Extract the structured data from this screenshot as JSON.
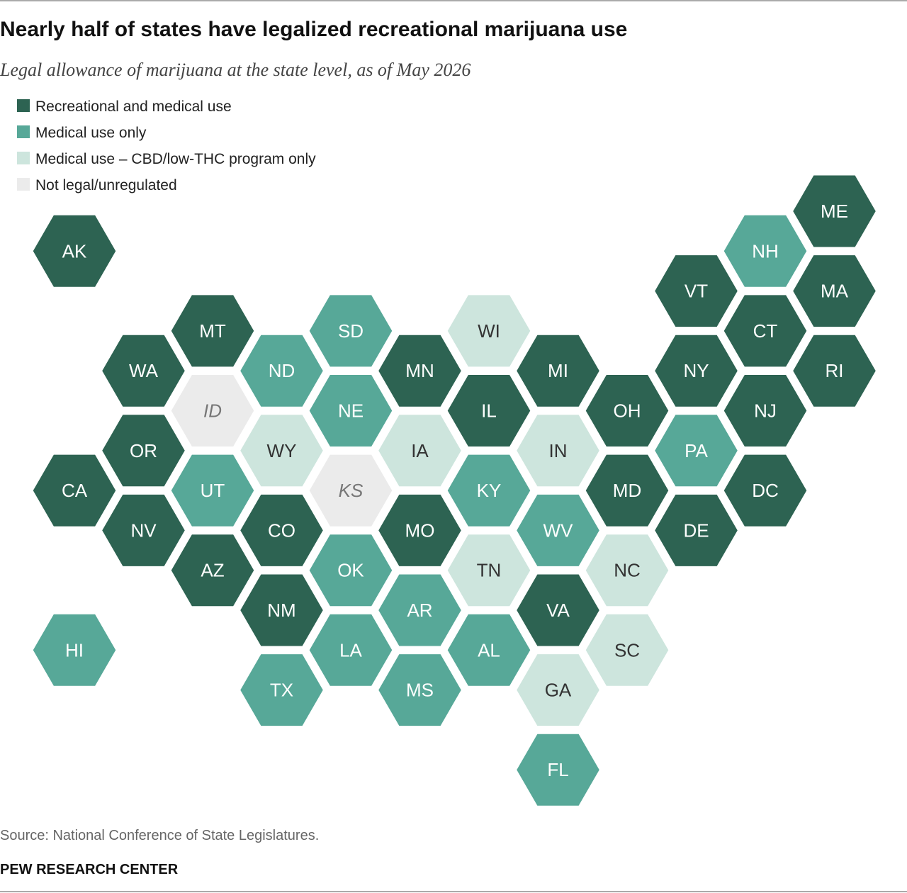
{
  "header": {
    "title": "Nearly half of states have legalized recreational marijuana use",
    "subtitle": "Legal allowance of marijuana at the state level, as of May 2026"
  },
  "legend": [
    {
      "label": "Recreational and medical use",
      "color": "#2d6352",
      "text_color": "#ffffff"
    },
    {
      "label": "Medical use only",
      "color": "#57a898",
      "text_color": "#ffffff"
    },
    {
      "label": "Medical use – CBD/low-THC program only",
      "color": "#cde5dd",
      "text_color": "#333333"
    },
    {
      "label": "Not legal/unregulated",
      "color": "#ebebeb",
      "text_color": "#777777"
    }
  ],
  "states": [
    {
      "label": "ME",
      "category": 0
    },
    {
      "label": "AK",
      "category": 0
    },
    {
      "label": "NH",
      "category": 1
    },
    {
      "label": "VT",
      "category": 0
    },
    {
      "label": "MA",
      "category": 0
    },
    {
      "label": "MT",
      "category": 0
    },
    {
      "label": "SD",
      "category": 1
    },
    {
      "label": "WI",
      "category": 2
    },
    {
      "label": "CT",
      "category": 0
    },
    {
      "label": "WA",
      "category": 0
    },
    {
      "label": "ND",
      "category": 1
    },
    {
      "label": "MN",
      "category": 0
    },
    {
      "label": "MI",
      "category": 0
    },
    {
      "label": "NY",
      "category": 0
    },
    {
      "label": "RI",
      "category": 0
    },
    {
      "label": "ID",
      "category": 3
    },
    {
      "label": "NE",
      "category": 1
    },
    {
      "label": "IL",
      "category": 0
    },
    {
      "label": "OH",
      "category": 0
    },
    {
      "label": "NJ",
      "category": 0
    },
    {
      "label": "OR",
      "category": 0
    },
    {
      "label": "WY",
      "category": 2
    },
    {
      "label": "IA",
      "category": 2
    },
    {
      "label": "IN",
      "category": 2
    },
    {
      "label": "PA",
      "category": 1
    },
    {
      "label": "CA",
      "category": 0
    },
    {
      "label": "UT",
      "category": 1
    },
    {
      "label": "KS",
      "category": 3
    },
    {
      "label": "KY",
      "category": 1
    },
    {
      "label": "MD",
      "category": 0
    },
    {
      "label": "DC",
      "category": 0
    },
    {
      "label": "NV",
      "category": 0
    },
    {
      "label": "CO",
      "category": 0
    },
    {
      "label": "MO",
      "category": 0
    },
    {
      "label": "WV",
      "category": 1
    },
    {
      "label": "DE",
      "category": 0
    },
    {
      "label": "AZ",
      "category": 0
    },
    {
      "label": "OK",
      "category": 1
    },
    {
      "label": "TN",
      "category": 2
    },
    {
      "label": "NC",
      "category": 2
    },
    {
      "label": "NM",
      "category": 0
    },
    {
      "label": "AR",
      "category": 1
    },
    {
      "label": "VA",
      "category": 0
    },
    {
      "label": "HI",
      "category": 1
    },
    {
      "label": "LA",
      "category": 1
    },
    {
      "label": "AL",
      "category": 1
    },
    {
      "label": "SC",
      "category": 2
    },
    {
      "label": "TX",
      "category": 1
    },
    {
      "label": "MS",
      "category": 1
    },
    {
      "label": "GA",
      "category": 2
    },
    {
      "label": "FL",
      "category": 1
    }
  ],
  "footer": {
    "source": "Source: National Conference of State Legislatures.",
    "org": "PEW RESEARCH CENTER"
  }
}
